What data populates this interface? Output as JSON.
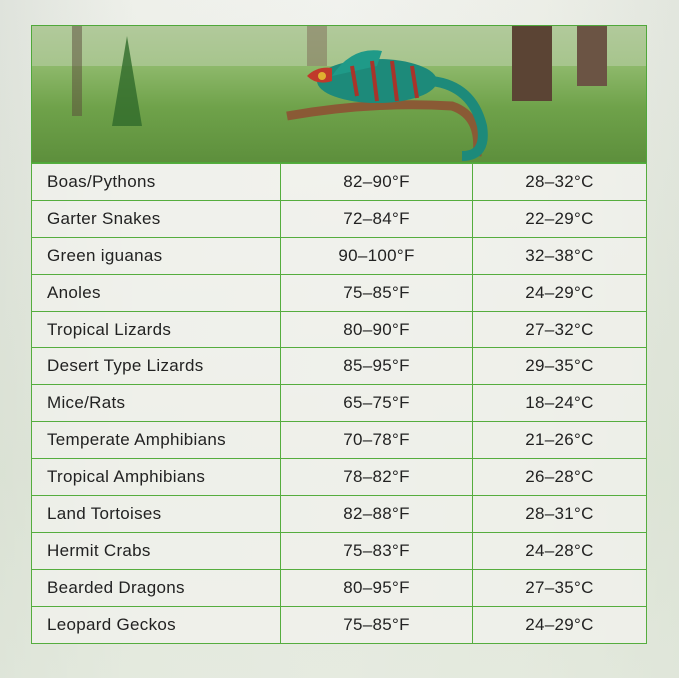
{
  "rows": [
    {
      "animal": "Boas/Pythons",
      "fahrenheit": "82–90°F",
      "celsius": "28–32°C"
    },
    {
      "animal": "Garter Snakes",
      "fahrenheit": "72–84°F",
      "celsius": "22–29°C"
    },
    {
      "animal": "Green iguanas",
      "fahrenheit": "90–100°F",
      "celsius": "32–38°C"
    },
    {
      "animal": "Anoles",
      "fahrenheit": "75–85°F",
      "celsius": "24–29°C"
    },
    {
      "animal": "Tropical Lizards",
      "fahrenheit": "80–90°F",
      "celsius": "27–32°C"
    },
    {
      "animal": "Desert Type Lizards",
      "fahrenheit": "85–95°F",
      "celsius": "29–35°C"
    },
    {
      "animal": "Mice/Rats",
      "fahrenheit": "65–75°F",
      "celsius": "18–24°C"
    },
    {
      "animal": "Temperate Amphibians",
      "fahrenheit": "70–78°F",
      "celsius": "21–26°C"
    },
    {
      "animal": "Tropical Amphibians",
      "fahrenheit": "78–82°F",
      "celsius": "26–28°C"
    },
    {
      "animal": "Land Tortoises",
      "fahrenheit": "82–88°F",
      "celsius": "28–31°C"
    },
    {
      "animal": "Hermit Crabs",
      "fahrenheit": "75–83°F",
      "celsius": "24–28°C"
    },
    {
      "animal": "Bearded Dragons",
      "fahrenheit": "80–95°F",
      "celsius": "27–35°C"
    },
    {
      "animal": "Leopard Geckos",
      "fahrenheit": "75–85°F",
      "celsius": "24–29°C"
    }
  ],
  "colors": {
    "border": "#55ad3e",
    "text": "#222222"
  },
  "banner_image": "chameleon-on-branch-forest"
}
